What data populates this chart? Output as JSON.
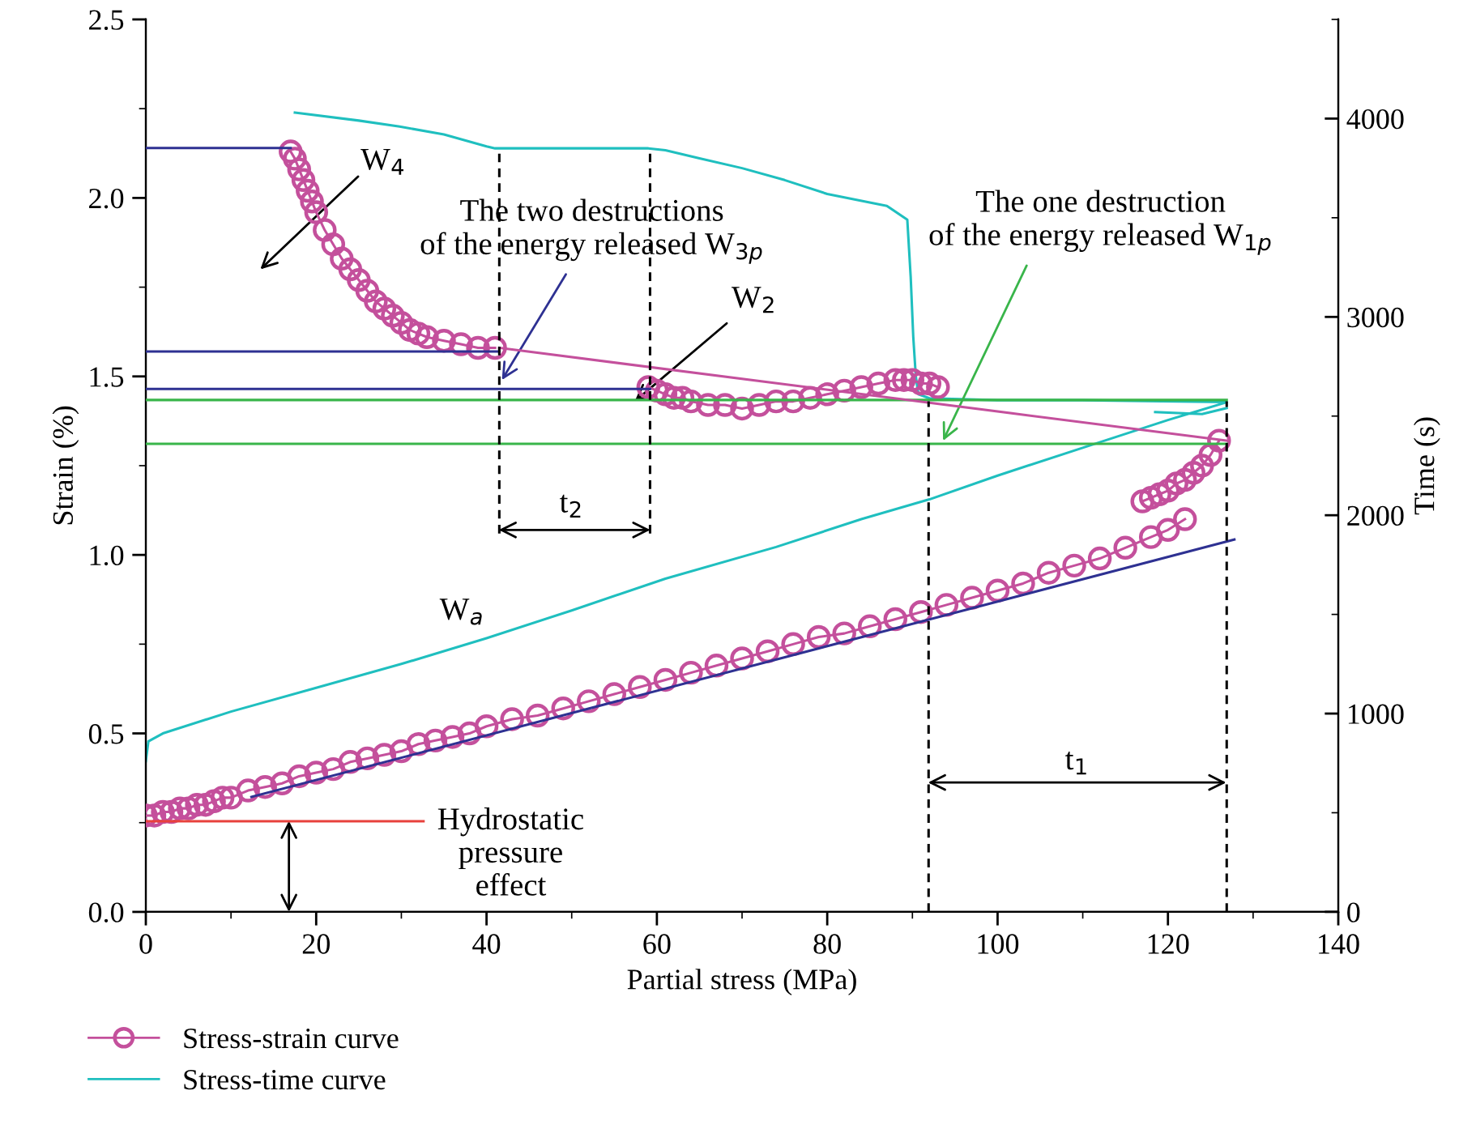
{
  "chart_data": {
    "type": "line",
    "xlabel": "Partial stress (MPa)",
    "ylabel": "Strain (%)",
    "y2label": "Time (s)",
    "xlim": [
      0,
      140
    ],
    "ylim": [
      0,
      2.5
    ],
    "y2lim": [
      0,
      4500
    ],
    "xticks": [
      0,
      {
        "value": 10,
        "label": null
      },
      20,
      {
        "value": 30,
        "label": null
      },
      40,
      {
        "value": 50,
        "label": null
      },
      60,
      {
        "value": 70,
        "label": null
      },
      80,
      {
        "value": 90,
        "label": null
      },
      100,
      {
        "value": 110,
        "label": null
      },
      120,
      {
        "value": 130,
        "label": null
      },
      140
    ],
    "yticks": [
      "0.0",
      {
        "value": 0.25,
        "label": null
      },
      0.5,
      {
        "value": 0.75,
        "label": null
      },
      "1.0",
      {
        "value": 1.25,
        "label": null
      },
      1.5,
      {
        "value": 1.75,
        "label": null
      },
      "2.0",
      {
        "value": 2.25,
        "label": null
      },
      2.5
    ],
    "y2ticks": [
      0,
      {
        "value": 500,
        "label": null
      },
      1000,
      {
        "value": 1500,
        "label": null
      },
      2000,
      {
        "value": 2500,
        "label": null
      },
      3000,
      {
        "value": 3500,
        "label": null
      },
      4000,
      {
        "value": 4500,
        "label": null
      }
    ],
    "legend": "bottom left",
    "grid": false,
    "series": [
      {
        "name": "Stress-strain curve",
        "color": "#c4509c",
        "marker": "circle",
        "x": [
          0,
          1,
          2,
          3,
          4,
          5,
          6,
          7,
          8,
          9,
          10,
          12,
          14,
          16,
          18,
          20,
          22,
          24,
          26,
          28,
          30,
          32,
          34,
          36,
          38,
          40,
          43,
          46,
          49,
          52,
          55,
          58,
          61,
          64,
          67,
          70,
          73,
          76,
          79,
          82,
          85,
          88,
          91,
          94,
          97,
          100,
          103,
          106,
          109,
          112,
          115,
          118,
          120,
          122,
          null,
          117,
          118,
          119,
          120,
          121,
          122,
          123,
          124,
          125,
          126,
          null,
          17,
          17.5,
          18,
          18.5,
          19,
          19.5,
          20,
          21,
          22,
          23,
          24,
          25,
          26,
          27,
          28,
          29,
          30,
          31,
          32,
          33,
          35,
          37,
          39,
          41,
          null,
          59,
          60,
          61,
          62,
          63,
          64,
          66,
          68,
          70,
          72,
          74,
          76,
          78,
          80,
          82,
          84,
          86,
          88,
          89,
          90,
          91,
          92,
          93
        ],
        "values": [
          0.27,
          0.27,
          0.28,
          0.28,
          0.29,
          0.29,
          0.3,
          0.3,
          0.31,
          0.32,
          0.32,
          0.34,
          0.35,
          0.36,
          0.38,
          0.39,
          0.4,
          0.42,
          0.43,
          0.44,
          0.45,
          0.47,
          0.48,
          0.49,
          0.5,
          0.52,
          0.54,
          0.55,
          0.57,
          0.59,
          0.61,
          0.63,
          0.65,
          0.67,
          0.69,
          0.71,
          0.73,
          0.75,
          0.77,
          0.78,
          0.8,
          0.82,
          0.84,
          0.86,
          0.88,
          0.9,
          0.92,
          0.95,
          0.97,
          0.99,
          1.02,
          1.05,
          1.07,
          1.1,
          null,
          1.15,
          1.16,
          1.17,
          1.18,
          1.2,
          1.21,
          1.23,
          1.25,
          1.28,
          1.32,
          null,
          2.13,
          2.11,
          2.08,
          2.05,
          2.02,
          1.99,
          1.96,
          1.91,
          1.87,
          1.83,
          1.8,
          1.77,
          1.74,
          1.71,
          1.69,
          1.67,
          1.65,
          1.63,
          1.62,
          1.61,
          1.6,
          1.59,
          1.58,
          1.58,
          null,
          1.47,
          1.46,
          1.45,
          1.44,
          1.44,
          1.43,
          1.42,
          1.42,
          1.41,
          1.42,
          1.43,
          1.43,
          1.44,
          1.45,
          1.46,
          1.47,
          1.48,
          1.49,
          1.49,
          1.49,
          1.48,
          1.48,
          1.47
        ]
      },
      {
        "name": "Stress-time curve",
        "color": "#1fbfbf",
        "axis": "y2",
        "x": [
          0,
          0.3,
          2,
          10,
          20,
          30,
          40,
          50,
          61,
          74,
          84,
          92,
          100,
          110,
          120,
          126.9,
          110,
          100,
          92,
          90.7,
          90.4,
          90.1,
          89.8,
          89.4,
          87,
          80,
          75,
          70,
          65,
          61,
          59,
          41,
          40,
          35,
          29.8,
          25,
          17.5,
          null,
          118.5,
          124,
          126.9
        ],
        "values": [
          760,
          860,
          900,
          1010,
          1130,
          1250,
          1380,
          1520,
          1680,
          1840,
          1980,
          2080,
          2200,
          2340,
          2480,
          2570,
          2580,
          2580,
          2590,
          2610,
          2700,
          2900,
          3200,
          3490,
          3560,
          3620,
          3690,
          3750,
          3800,
          3840,
          3850,
          3850,
          3860,
          3920,
          3960,
          3990,
          4030,
          null,
          2520,
          2510,
          2540
        ]
      },
      {
        "color": "#2e3192",
        "x": [
          0,
          17
        ],
        "values": [
          2.14,
          2.14
        ]
      },
      {
        "color": "#2e3192",
        "x": [
          0,
          41.5
        ],
        "values": [
          1.57,
          1.57
        ]
      },
      {
        "color": "#2e3192",
        "x": [
          0,
          59.2
        ],
        "values": [
          1.465,
          1.465
        ]
      },
      {
        "color": "#39b54a",
        "x": [
          0,
          126.9
        ],
        "values": [
          1.434,
          1.434
        ]
      },
      {
        "color": "#39b54a",
        "x": [
          0,
          126.9
        ],
        "values": [
          1.311,
          1.311
        ]
      },
      {
        "color": "#e8413c",
        "x": [
          0,
          32.6
        ],
        "values": [
          0.254,
          0.254
        ]
      },
      {
        "color": "#2e3192",
        "x": [
          12.4,
          127.8
        ],
        "values": [
          0.322,
          1.043
        ]
      },
      {
        "color": "#c4509c",
        "x": [
          41.5,
          126.9
        ],
        "values": [
          1.58,
          1.32
        ]
      },
      {
        "color": "#000000",
        "line_style": "dashed",
        "x": [
          41.5,
          41.5
        ],
        "values": [
          1.06,
          2.13
        ]
      },
      {
        "color": "#000000",
        "line_style": "dashed",
        "x": [
          59.2,
          59.2
        ],
        "values": [
          1.06,
          2.13
        ]
      },
      {
        "color": "#000000",
        "line_style": "dashed",
        "x": [
          91.9,
          91.9
        ],
        "values": [
          0,
          1.43
        ]
      },
      {
        "color": "#000000",
        "line_style": "dashed",
        "x": [
          126.9,
          126.9
        ],
        "values": [
          0,
          1.43
        ]
      }
    ],
    "annotations": [
      "W$_{4}$",
      {
        "text": "The two destructions\nof the energy released W$_{3p}$",
        "x": 41.8,
        "y": 1.49
      },
      {
        "text": "W$_{2}$",
        "x": 57.4,
        "y": 1.43
      },
      {
        "text": "The one destruction\nof the energy released W$_{1p}$",
        "x": 93.6,
        "y": 1.32
      },
      "W$_{a}$",
      "t$_{2}$",
      "t$_{1}$",
      "Hydrostatic\npressure\neffect"
    ]
  }
}
